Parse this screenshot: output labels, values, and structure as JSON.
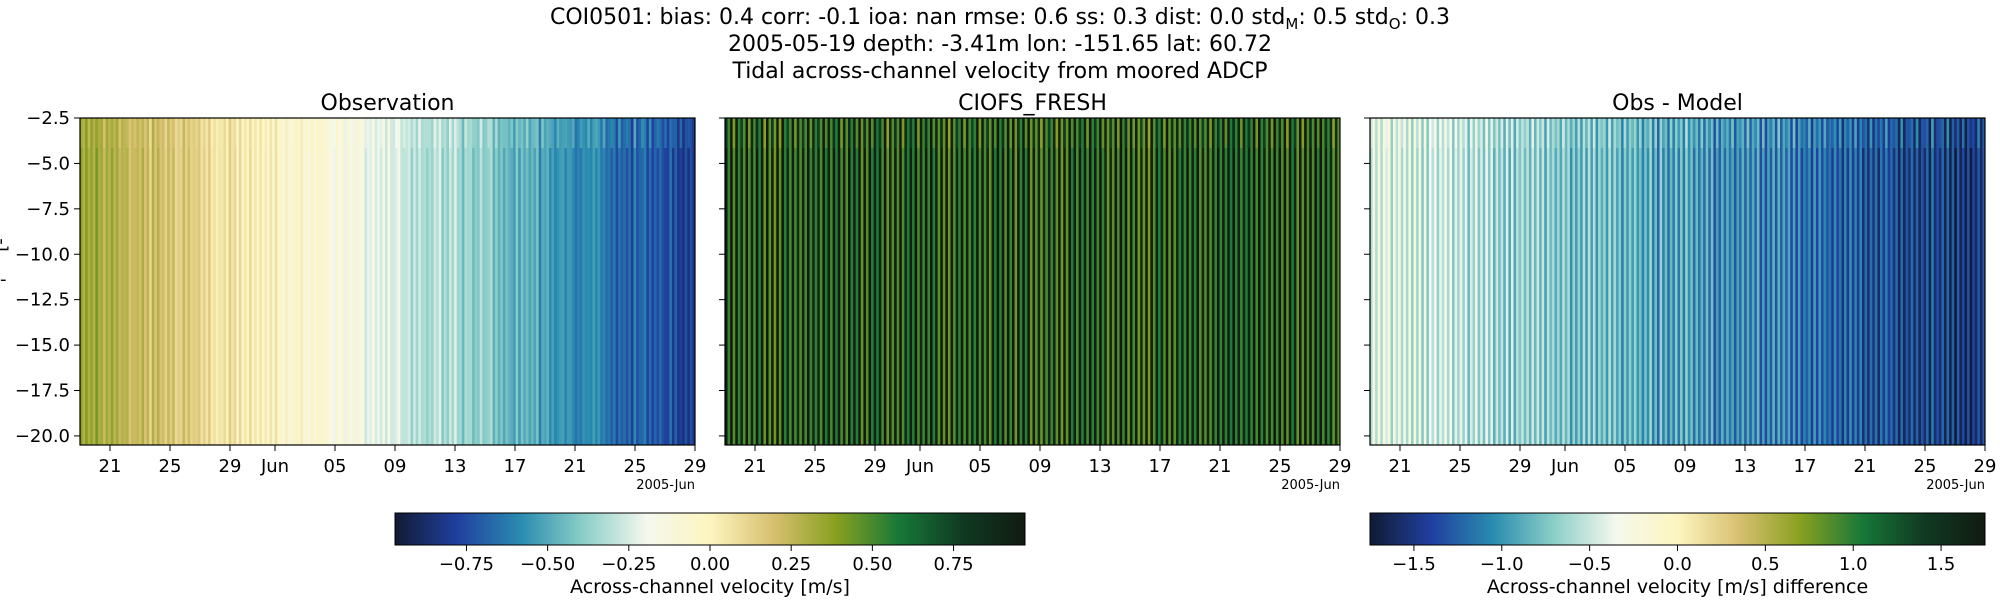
{
  "figure": {
    "title_line1_prefix": "COI0501: bias: 0.4  corr: -0.1  ioa: nan  rmse: 0.6  ss: 0.3  dist: 0.0  std",
    "title_line1_sub_m": "M",
    "title_line1_mid": ": 0.5  std",
    "title_line1_sub_o": "O",
    "title_line1_suffix": ": 0.3",
    "title_line2": "2005-05-19 depth: -3.41m lon: -151.65 lat: 60.72",
    "title_line3": "Tidal across-channel velocity from moored ADCP",
    "ylabel_fragment": "[-",
    "ylabel_fragment2": "-"
  },
  "chart_data": [
    {
      "type": "heatmap",
      "title": "Observation",
      "colormap": "delta",
      "x_start": "2005-05-19",
      "x_end": "2005-06-29",
      "x_ticks": [
        "21",
        "25",
        "29",
        "Jun",
        "05",
        "09",
        "13",
        "17",
        "21",
        "25",
        "29"
      ],
      "x_offset_label": "2005-Jun",
      "y_ticks": [
        "-2.5",
        "-5.0",
        "-7.5",
        "-10.0",
        "-12.5",
        "-15.0",
        "-17.5",
        "-20.0"
      ],
      "ylim": [
        -20.5,
        -2.5
      ],
      "value_trend": "positive ~0.3 at start decreasing to ~-0.8 at end"
    },
    {
      "type": "heatmap",
      "title": "CIOFS_FRESH",
      "colormap": "delta",
      "x_start": "2005-05-19",
      "x_end": "2005-06-29",
      "x_ticks": [
        "21",
        "25",
        "29",
        "Jun",
        "05",
        "09",
        "13",
        "17",
        "21",
        "25",
        "29"
      ],
      "x_offset_label": "2005-Jun",
      "y_ticks": [],
      "ylim": [
        -20.5,
        -2.5
      ],
      "value_trend": "alternating ~0.5 to ~1.0"
    },
    {
      "type": "heatmap",
      "title": "Obs - Model",
      "colormap": "delta",
      "x_start": "2005-05-19",
      "x_end": "2005-06-29",
      "x_ticks": [
        "21",
        "25",
        "29",
        "Jun",
        "05",
        "09",
        "13",
        "17",
        "21",
        "25",
        "29"
      ],
      "x_offset_label": "2005-Jun",
      "y_ticks": [],
      "ylim": [
        -20.5,
        -2.5
      ],
      "value_trend": "alternating, from ~0.5 at start to ~-1.5 at end"
    }
  ],
  "colorbars": [
    {
      "label": "Across-channel velocity [m/s]",
      "range": [
        -0.97,
        0.97
      ],
      "ticks": [
        "−0.75",
        "−0.50",
        "−0.25",
        "0.00",
        "0.25",
        "0.50",
        "0.75"
      ],
      "tick_values": [
        -0.75,
        -0.5,
        -0.25,
        0.0,
        0.25,
        0.5,
        0.75
      ]
    },
    {
      "label": "Across-channel velocity [m/s] difference",
      "range": [
        -1.75,
        1.75
      ],
      "ticks": [
        "−1.5",
        "−1.0",
        "−0.5",
        "0.0",
        "0.5",
        "1.0",
        "1.5"
      ],
      "tick_values": [
        -1.5,
        -1.0,
        -0.5,
        0.0,
        0.5,
        1.0,
        1.5
      ]
    }
  ],
  "colors": {
    "delta_stops": [
      "#111a33",
      "#2040a0",
      "#2a8cb0",
      "#8ccfc8",
      "#f5f8ee",
      "#fdf5c0",
      "#d8c070",
      "#88a020",
      "#187838",
      "#103a22",
      "#111a11"
    ]
  }
}
